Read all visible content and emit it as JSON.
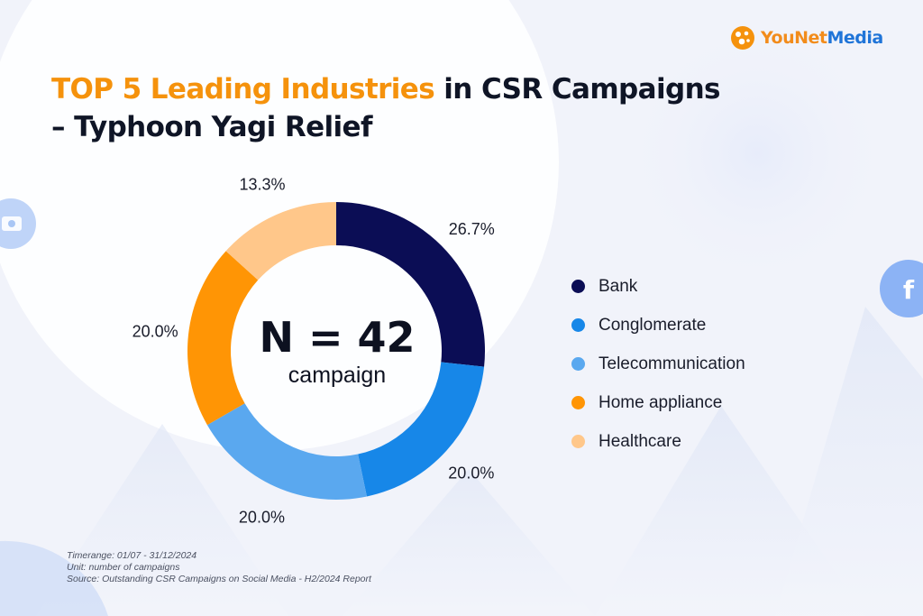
{
  "brand": {
    "logo_text_a": "YouNet",
    "logo_text_b": "Media",
    "accent": "#f5920c",
    "brand_blue": "#1f74d8"
  },
  "title": {
    "highlight": "TOP 5 Leading Industries",
    "rest_line1": " in CSR Campaigns",
    "line2": "– Typhoon Yagi Relief"
  },
  "center": {
    "total": "N = 42",
    "unit": "campaign"
  },
  "chart_data": {
    "type": "pie",
    "donut": true,
    "categories": [
      "Bank",
      "Conglomerate",
      "Telecommunication",
      "Home appliance",
      "Healthcare"
    ],
    "values": [
      26.7,
      20.0,
      20.0,
      20.0,
      13.3
    ],
    "data_labels": [
      "26.7%",
      "20.0%",
      "20.0%",
      "20.0%",
      "13.3%"
    ],
    "colors": [
      "#0b0d55",
      "#1787e8",
      "#5aa8ef",
      "#ff9505",
      "#ffc78a"
    ],
    "legend_position": "right"
  },
  "notes": {
    "timerange": "Timerange: 01/07 - 31/12/2024",
    "unit": "Unit: number of campaigns",
    "source": "Source: Outstanding CSR Campaigns on Social Media - H2/2024 Report"
  },
  "icons": [
    "video-icon",
    "facebook-icon"
  ]
}
